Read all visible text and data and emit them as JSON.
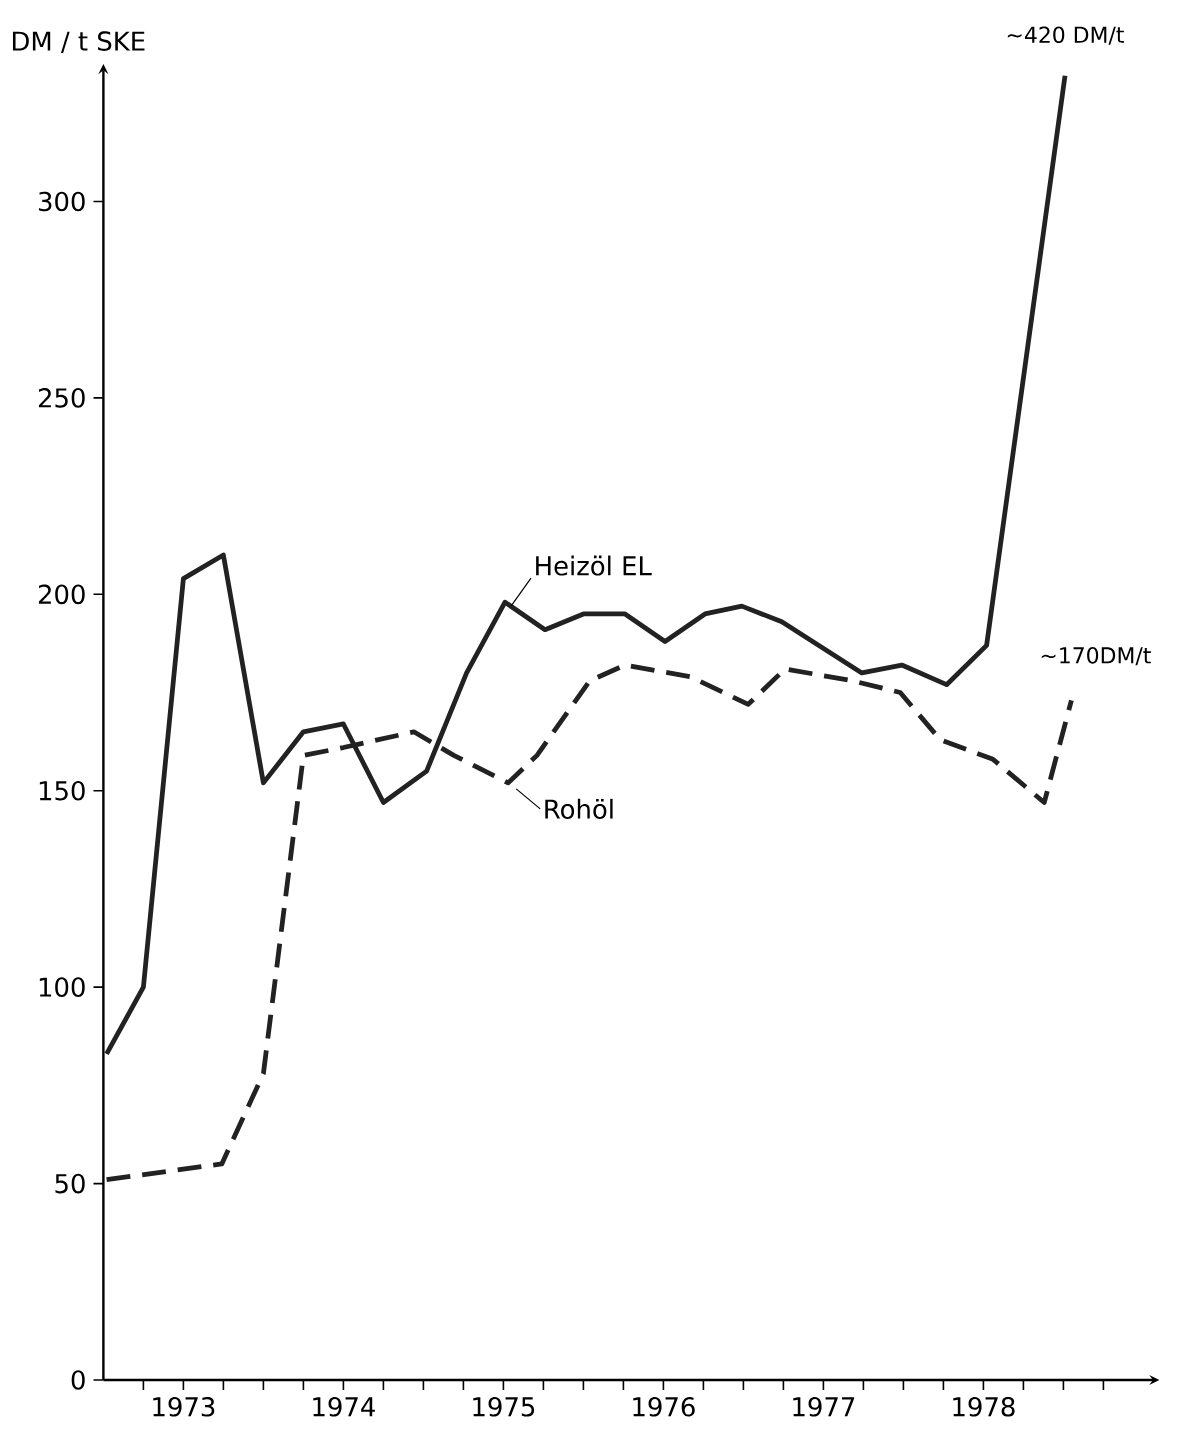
{
  "chart_data": {
    "type": "line",
    "ylabel": "DM / t SKE",
    "xlim": [
      1972.5,
      1979.1
    ],
    "ylim": [
      0,
      335
    ],
    "xticks": [
      {
        "value": 1972.75,
        "label": null
      },
      1973,
      {
        "value": 1973.25,
        "label": null
      },
      {
        "value": 1973.5,
        "label": null
      },
      {
        "value": 1973.75,
        "label": null
      },
      1974,
      {
        "value": 1974.25,
        "label": null
      },
      {
        "value": 1974.5,
        "label": null
      },
      {
        "value": 1974.75,
        "label": null
      },
      1975,
      {
        "value": 1975.25,
        "label": null
      },
      {
        "value": 1975.5,
        "label": null
      },
      {
        "value": 1975.75,
        "label": null
      },
      1976,
      {
        "value": 1976.25,
        "label": null
      },
      {
        "value": 1976.5,
        "label": null
      },
      {
        "value": 1976.75,
        "label": null
      },
      1977,
      {
        "value": 1977.25,
        "label": null
      },
      {
        "value": 1977.5,
        "label": null
      },
      {
        "value": 1977.75,
        "label": null
      },
      1978,
      {
        "value": 1978.25,
        "label": null
      },
      {
        "value": 1978.5,
        "label": null
      },
      {
        "value": 1978.75,
        "label": null
      }
    ],
    "yticks": [
      0,
      50,
      100,
      150,
      200,
      250,
      300
    ],
    "grid": false,
    "marker": "none",
    "series": [
      {
        "name": "Heizöl EL",
        "color": "#222222",
        "line_style": "solid",
        "x": [
          1972.52,
          1972.75,
          1973.0,
          1973.25,
          1973.5,
          1973.75,
          1974.0,
          1974.25,
          1974.52,
          1974.77,
          1975.01,
          1975.26,
          1975.5,
          1975.76,
          1976.01,
          1976.26,
          1976.49,
          1976.74,
          1977.24,
          1977.49,
          1977.77,
          1978.02,
          1978.51
        ],
        "values": [
          83,
          100,
          204,
          210,
          152,
          165,
          167,
          147,
          155,
          180,
          198,
          191,
          195,
          195,
          188,
          195,
          197,
          193,
          180,
          182,
          177,
          187,
          332
        ]
      },
      {
        "name": "Rohöl",
        "color": "#222222",
        "line_style": "dashed",
        "x": [
          1972.52,
          1973.24,
          1973.5,
          1973.75,
          1974.0,
          1974.44,
          1974.69,
          1975.03,
          1975.21,
          1975.54,
          1975.76,
          1976.17,
          1976.53,
          1976.76,
          1977.18,
          1977.48,
          1977.73,
          1978.06,
          1978.38,
          1978.55
        ],
        "values": [
          51,
          55,
          78,
          159,
          161,
          165,
          159,
          152,
          159,
          178,
          182,
          179,
          172,
          181,
          178,
          175,
          163,
          158,
          147,
          173
        ]
      }
    ],
    "annotations": [
      {
        "text": "~420 DM/t",
        "x": 1978.51,
        "y": 332
      },
      {
        "text": "~170DM/t",
        "x": 1978.55,
        "y": 173
      }
    ]
  }
}
